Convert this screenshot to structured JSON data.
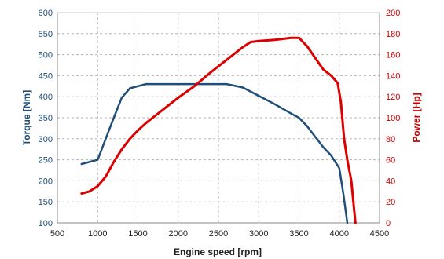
{
  "chart_data": {
    "type": "line",
    "xlabel": "Engine speed [rpm]",
    "ylabel_left": "Torque [Nm]",
    "ylabel_right": "Power [Hp]",
    "xlim": [
      500,
      4500
    ],
    "ylim_left": [
      100,
      600
    ],
    "ylim_right": [
      0,
      200
    ],
    "x_ticks": [
      500,
      1000,
      1500,
      2000,
      2500,
      3000,
      3500,
      4000,
      4500
    ],
    "y_ticks_left": [
      100,
      150,
      200,
      250,
      300,
      350,
      400,
      450,
      500,
      550,
      600
    ],
    "y_ticks_right": [
      0,
      20,
      40,
      60,
      80,
      100,
      120,
      140,
      160,
      180,
      200
    ],
    "grid": true,
    "colors": {
      "torque": "#1f4e79",
      "power": "#dd0000"
    },
    "series": [
      {
        "axis": "left",
        "points": [
          [
            800,
            240
          ],
          [
            1000,
            250
          ],
          [
            1100,
            300
          ],
          [
            1200,
            350
          ],
          [
            1300,
            398
          ],
          [
            1400,
            420
          ],
          [
            1600,
            430
          ],
          [
            1800,
            430
          ],
          [
            2000,
            430
          ],
          [
            2200,
            430
          ],
          [
            2400,
            430
          ],
          [
            2600,
            430
          ],
          [
            2800,
            422
          ],
          [
            3000,
            402
          ],
          [
            3200,
            382
          ],
          [
            3400,
            360
          ],
          [
            3500,
            350
          ],
          [
            3600,
            330
          ],
          [
            3700,
            305
          ],
          [
            3800,
            280
          ],
          [
            3900,
            260
          ],
          [
            4000,
            230
          ],
          [
            4050,
            170
          ],
          [
            4100,
            100
          ]
        ]
      },
      {
        "axis": "right",
        "points": [
          [
            800,
            28
          ],
          [
            900,
            30
          ],
          [
            1000,
            35
          ],
          [
            1100,
            44
          ],
          [
            1200,
            58
          ],
          [
            1300,
            70
          ],
          [
            1400,
            80
          ],
          [
            1500,
            88
          ],
          [
            1600,
            95
          ],
          [
            1800,
            107
          ],
          [
            2000,
            119
          ],
          [
            2200,
            130
          ],
          [
            2400,
            143
          ],
          [
            2600,
            155
          ],
          [
            2800,
            167
          ],
          [
            2900,
            172
          ],
          [
            3000,
            173
          ],
          [
            3200,
            174
          ],
          [
            3400,
            176
          ],
          [
            3500,
            176
          ],
          [
            3600,
            168
          ],
          [
            3700,
            157
          ],
          [
            3800,
            146
          ],
          [
            3900,
            140
          ],
          [
            3980,
            133
          ],
          [
            4020,
            115
          ],
          [
            4060,
            80
          ],
          [
            4100,
            60
          ],
          [
            4150,
            40
          ],
          [
            4200,
            0
          ]
        ]
      }
    ]
  }
}
